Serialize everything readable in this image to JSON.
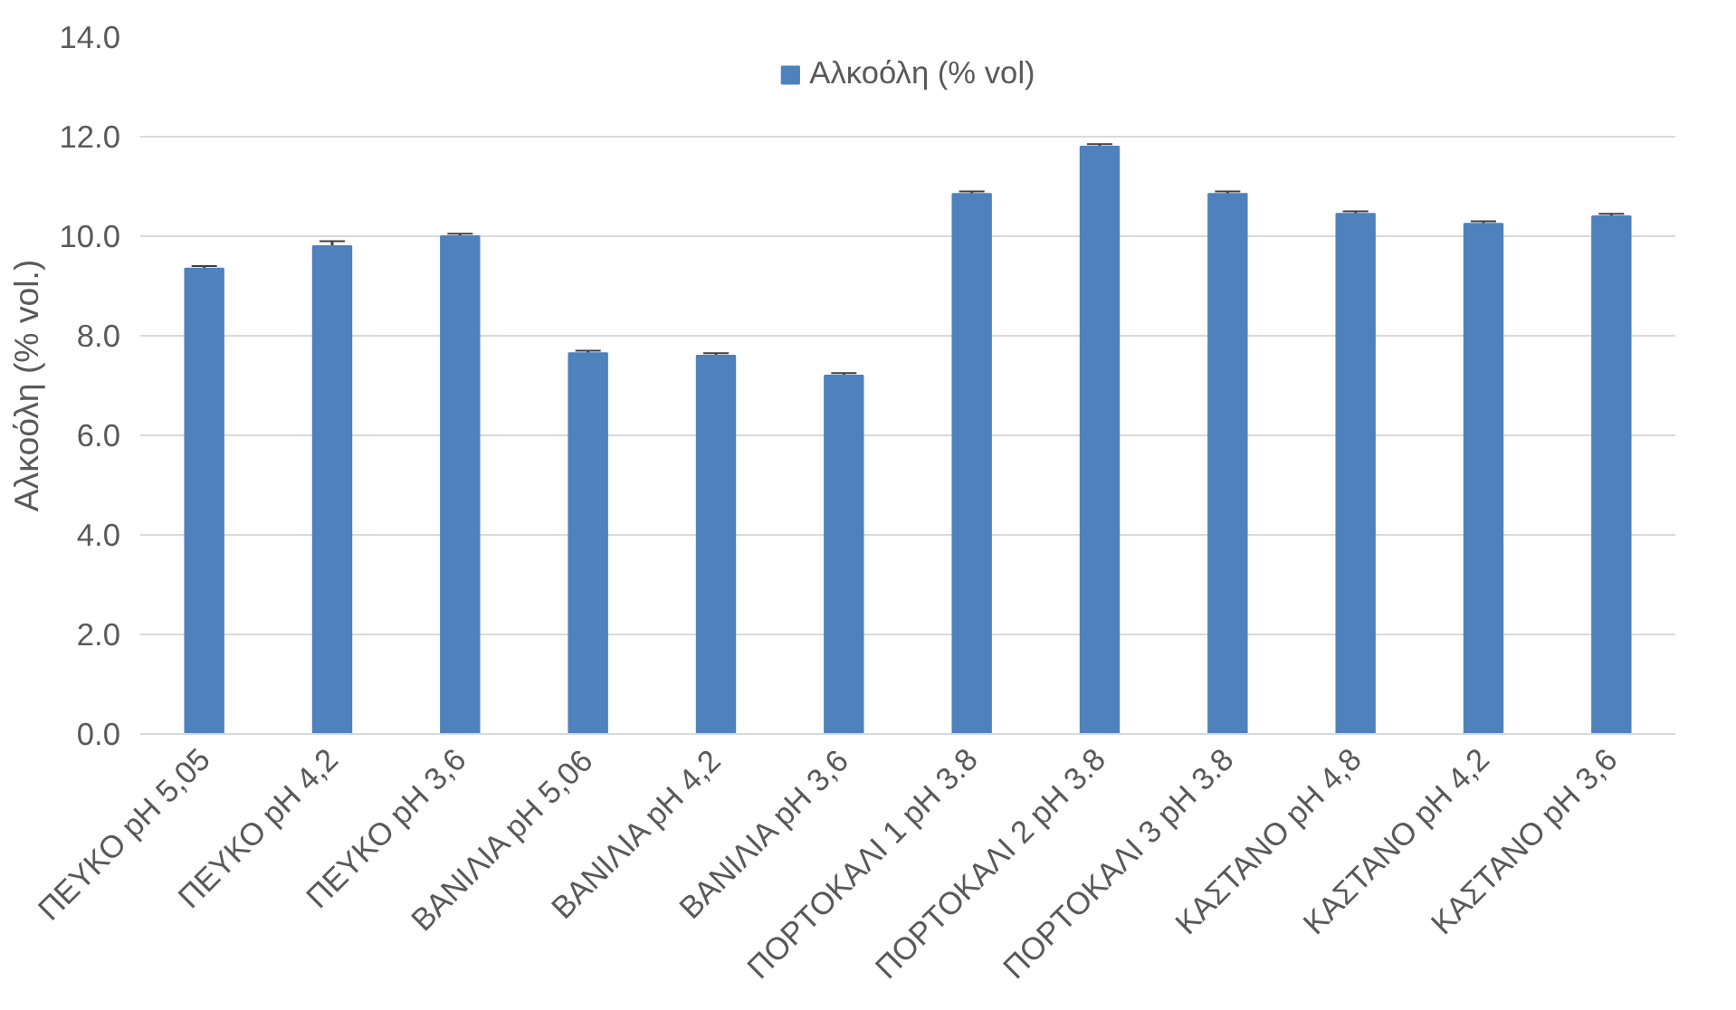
{
  "chart_data": {
    "type": "bar",
    "ylabel": "Αλκοόλη (% vol.)",
    "categories": [
      "ΠΕΥΚΟ pH 5,05",
      "ΠΕΥΚΟ pH 4,2",
      "ΠΕΥΚΟ pH 3,6",
      "ΒΑΝΙΛΙΑ pH 5,06",
      "ΒΑΝΙΛΙΑ pH 4,2",
      "ΒΑΝΙΛΙΑ pH 3,6",
      "ΠΟΡΤΟΚΑΛΙ 1 pH 3.8",
      "ΠΟΡΤΟΚΑΛΙ 2 pH 3.8",
      "ΠΟΡΤΟΚΑΛΙ 3 pH 3.8",
      "ΚΑΣΤΑΝΟ pH 4,8",
      "ΚΑΣΤΑΝΟ pH 4,2",
      "ΚΑΣΤΑΝΟ pH 3,6"
    ],
    "series": [
      {
        "name": "Αλκοόλη (% vol)",
        "color": "#4f81bd",
        "values": [
          9.35,
          9.8,
          10.0,
          7.65,
          7.6,
          7.2,
          10.85,
          11.8,
          10.85,
          10.45,
          10.25,
          10.4
        ],
        "errors": [
          0.05,
          0.1,
          0.05,
          0.05,
          0.05,
          0.05,
          0.05,
          0.05,
          0.05,
          0.05,
          0.05,
          0.05
        ]
      }
    ],
    "ylim": [
      0,
      14
    ],
    "yticks": [
      {
        "value": 0,
        "label": "0.0"
      },
      {
        "value": 2,
        "label": "2.0"
      },
      {
        "value": 4,
        "label": "4.0"
      },
      {
        "value": 6,
        "label": "6.0"
      },
      {
        "value": 8,
        "label": "8.0"
      },
      {
        "value": 10,
        "label": "10.0"
      },
      {
        "value": 12,
        "label": "12.0"
      },
      {
        "value": 14,
        "label": "14.0"
      }
    ],
    "grid": "y",
    "legend": "top"
  }
}
